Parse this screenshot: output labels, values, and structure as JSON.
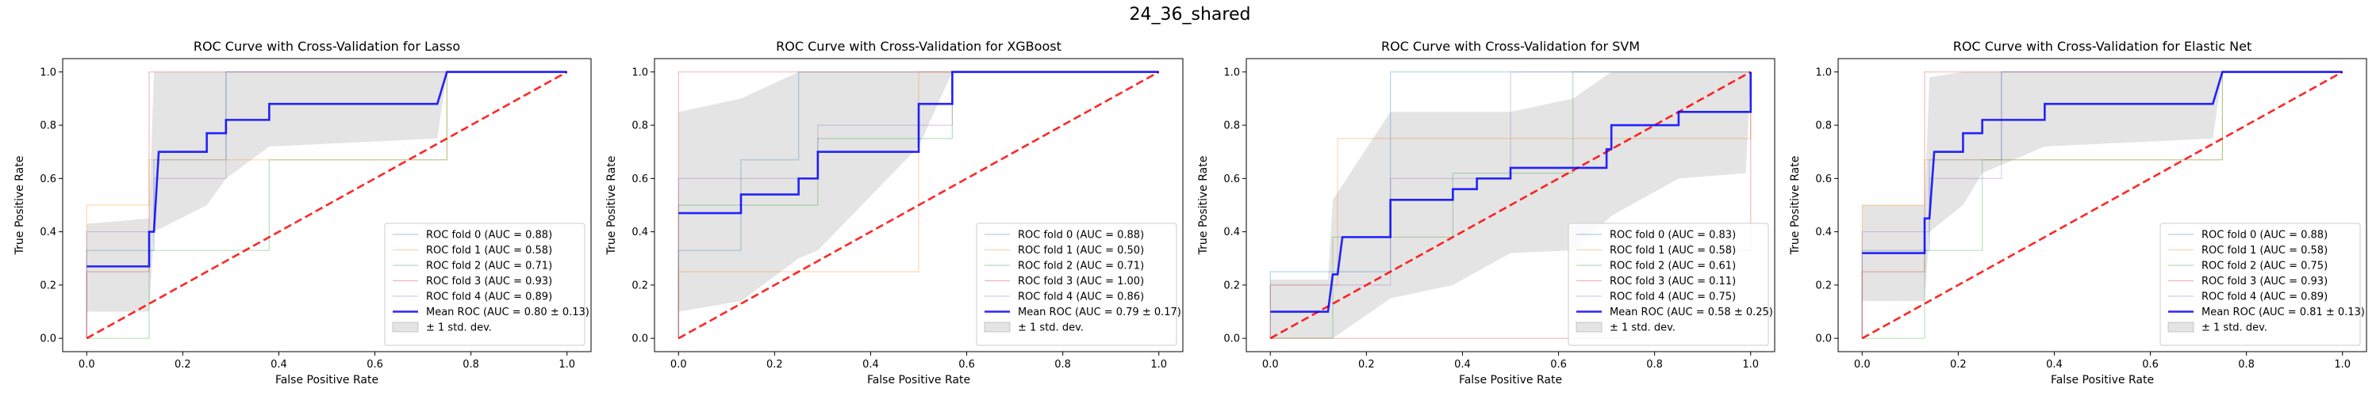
{
  "figure": {
    "suptitle": "24_36_shared"
  },
  "colors": {
    "fold": [
      "#1f77b4",
      "#ff7f0e",
      "#2ca02c",
      "#d62728",
      "#9467bd"
    ],
    "mean": "#0000ff",
    "chance": "#ff0000",
    "band": "#bfbfbf"
  },
  "chart_data": [
    {
      "type": "line",
      "title": "ROC Curve with Cross-Validation for Lasso",
      "xlabel": "False Positive Rate",
      "ylabel": "True Positive Rate",
      "xlim": [
        -0.05,
        1.05
      ],
      "ylim": [
        -0.05,
        1.05
      ],
      "xticks": [
        "0.0",
        "0.2",
        "0.4",
        "0.6",
        "0.8",
        "1.0"
      ],
      "yticks": [
        "0.0",
        "0.2",
        "0.4",
        "0.6",
        "0.8",
        "1.0"
      ],
      "grid": false,
      "legend": "lower-right",
      "folds": [
        {
          "name": "ROC fold 0 (AUC = 0.88)",
          "points": [
            [
              0,
              0
            ],
            [
              0,
              0.33
            ],
            [
              0.14,
              0.33
            ],
            [
              0.14,
              0.67
            ],
            [
              0.29,
              0.67
            ],
            [
              0.29,
              1
            ],
            [
              1,
              1
            ]
          ]
        },
        {
          "name": "ROC fold 1 (AUC = 0.58)",
          "points": [
            [
              0,
              0
            ],
            [
              0,
              0.5
            ],
            [
              0.13,
              0.5
            ],
            [
              0.13,
              0.67
            ],
            [
              0.38,
              0.67
            ],
            [
              0.38,
              0.67
            ],
            [
              0.75,
              0.67
            ],
            [
              0.75,
              1
            ],
            [
              1,
              1
            ]
          ]
        },
        {
          "name": "ROC fold 2 (AUC = 0.71)",
          "points": [
            [
              0,
              0
            ],
            [
              0.13,
              0
            ],
            [
              0.13,
              0.33
            ],
            [
              0.38,
              0.33
            ],
            [
              0.38,
              0.67
            ],
            [
              0.75,
              0.67
            ],
            [
              0.75,
              1
            ],
            [
              1,
              1
            ]
          ]
        },
        {
          "name": "ROC fold 3 (AUC = 0.93)",
          "points": [
            [
              0,
              0
            ],
            [
              0,
              0.25
            ],
            [
              0.13,
              0.25
            ],
            [
              0.13,
              1
            ],
            [
              1,
              1
            ]
          ]
        },
        {
          "name": "ROC fold 4 (AUC = 0.89)",
          "points": [
            [
              0,
              0
            ],
            [
              0,
              0.4
            ],
            [
              0.14,
              0.4
            ],
            [
              0.14,
              0.6
            ],
            [
              0.29,
              0.6
            ],
            [
              0.29,
              1
            ],
            [
              1,
              1
            ]
          ]
        }
      ],
      "mean": {
        "name": "Mean ROC (AUC = 0.80 ± 0.13)",
        "points": [
          [
            0,
            0.27
          ],
          [
            0.13,
            0.27
          ],
          [
            0.13,
            0.4
          ],
          [
            0.14,
            0.4
          ],
          [
            0.15,
            0.7
          ],
          [
            0.25,
            0.7
          ],
          [
            0.25,
            0.77
          ],
          [
            0.29,
            0.77
          ],
          [
            0.29,
            0.82
          ],
          [
            0.38,
            0.82
          ],
          [
            0.38,
            0.88
          ],
          [
            0.73,
            0.88
          ],
          [
            0.75,
            1
          ],
          [
            1,
            1
          ]
        ]
      },
      "band": {
        "name": "± 1 std. dev.",
        "x": [
          0,
          0.13,
          0.14,
          0.25,
          0.29,
          0.38,
          0.73,
          0.75,
          1
        ],
        "upper": [
          0.43,
          0.45,
          1,
          1,
          1,
          1,
          1,
          1,
          1
        ],
        "lower": [
          0.1,
          0.1,
          0.4,
          0.5,
          0.6,
          0.72,
          0.75,
          1,
          1
        ]
      }
    },
    {
      "type": "line",
      "title": "ROC Curve with Cross-Validation for XGBoost",
      "xlabel": "False Positive Rate",
      "ylabel": "True Positive Rate",
      "xlim": [
        -0.05,
        1.05
      ],
      "ylim": [
        -0.05,
        1.05
      ],
      "xticks": [
        "0.0",
        "0.2",
        "0.4",
        "0.6",
        "0.8",
        "1.0"
      ],
      "yticks": [
        "0.0",
        "0.2",
        "0.4",
        "0.6",
        "0.8",
        "1.0"
      ],
      "grid": false,
      "legend": "lower-right",
      "folds": [
        {
          "name": "ROC fold 0 (AUC = 0.88)",
          "points": [
            [
              0,
              0
            ],
            [
              0,
              0.33
            ],
            [
              0.13,
              0.33
            ],
            [
              0.13,
              0.67
            ],
            [
              0.25,
              0.67
            ],
            [
              0.25,
              1
            ],
            [
              1,
              1
            ]
          ]
        },
        {
          "name": "ROC fold 1 (AUC = 0.50)",
          "points": [
            [
              0,
              0
            ],
            [
              0,
              0.25
            ],
            [
              0.5,
              0.25
            ],
            [
              0.5,
              1
            ],
            [
              1,
              1
            ]
          ]
        },
        {
          "name": "ROC fold 2 (AUC = 0.71)",
          "points": [
            [
              0,
              0
            ],
            [
              0,
              0.5
            ],
            [
              0.29,
              0.5
            ],
            [
              0.29,
              0.75
            ],
            [
              0.57,
              0.75
            ],
            [
              0.57,
              1
            ],
            [
              1,
              1
            ]
          ]
        },
        {
          "name": "ROC fold 3 (AUC = 1.00)",
          "points": [
            [
              0,
              0
            ],
            [
              0,
              1
            ],
            [
              1,
              1
            ]
          ]
        },
        {
          "name": "ROC fold 4 (AUC = 0.86)",
          "points": [
            [
              0,
              0
            ],
            [
              0,
              0.6
            ],
            [
              0.29,
              0.6
            ],
            [
              0.29,
              0.8
            ],
            [
              0.57,
              0.8
            ],
            [
              0.57,
              1
            ],
            [
              1,
              1
            ]
          ]
        }
      ],
      "mean": {
        "name": "Mean ROC (AUC = 0.79 ± 0.17)",
        "points": [
          [
            0,
            0.47
          ],
          [
            0.13,
            0.47
          ],
          [
            0.13,
            0.54
          ],
          [
            0.25,
            0.54
          ],
          [
            0.25,
            0.6
          ],
          [
            0.29,
            0.6
          ],
          [
            0.29,
            0.7
          ],
          [
            0.5,
            0.7
          ],
          [
            0.5,
            0.88
          ],
          [
            0.57,
            0.88
          ],
          [
            0.57,
            1
          ],
          [
            1,
            1
          ]
        ]
      },
      "band": {
        "name": "± 1 std. dev.",
        "x": [
          0,
          0.13,
          0.25,
          0.29,
          0.5,
          0.57,
          1
        ],
        "upper": [
          0.85,
          0.9,
          1,
          1,
          1,
          1,
          1
        ],
        "lower": [
          0.1,
          0.14,
          0.3,
          0.33,
          0.72,
          1,
          1
        ]
      }
    },
    {
      "type": "line",
      "title": "ROC Curve with Cross-Validation for SVM",
      "xlabel": "False Positive Rate",
      "ylabel": "True Positive Rate",
      "xlim": [
        -0.05,
        1.05
      ],
      "ylim": [
        -0.05,
        1.05
      ],
      "xticks": [
        "0.0",
        "0.2",
        "0.4",
        "0.6",
        "0.8",
        "1.0"
      ],
      "yticks": [
        "0.0",
        "0.2",
        "0.4",
        "0.6",
        "0.8",
        "1.0"
      ],
      "grid": false,
      "legend": "lower-right",
      "folds": [
        {
          "name": "ROC fold 0 (AUC = 0.83)",
          "points": [
            [
              0,
              0
            ],
            [
              0,
              0.25
            ],
            [
              0.25,
              0.25
            ],
            [
              0.25,
              1
            ],
            [
              1,
              1
            ]
          ]
        },
        {
          "name": "ROC fold 1 (AUC = 0.58)",
          "points": [
            [
              0,
              0
            ],
            [
              0,
              0.2
            ],
            [
              0.14,
              0.2
            ],
            [
              0.14,
              0.75
            ],
            [
              0.43,
              0.75
            ],
            [
              0.43,
              0.75
            ],
            [
              1,
              0.75
            ],
            [
              1,
              1
            ]
          ]
        },
        {
          "name": "ROC fold 2 (AUC = 0.61)",
          "points": [
            [
              0,
              0
            ],
            [
              0.13,
              0
            ],
            [
              0.13,
              0.38
            ],
            [
              0.38,
              0.38
            ],
            [
              0.38,
              0.62
            ],
            [
              0.63,
              0.62
            ],
            [
              0.63,
              1
            ],
            [
              1,
              1
            ]
          ]
        },
        {
          "name": "ROC fold 3 (AUC = 0.11)",
          "points": [
            [
              0,
              0
            ],
            [
              0.75,
              0
            ],
            [
              0.75,
              0.33
            ],
            [
              1,
              0.33
            ],
            [
              1,
              1
            ]
          ]
        },
        {
          "name": "ROC fold 4 (AUC = 0.75)",
          "points": [
            [
              0,
              0
            ],
            [
              0,
              0.2
            ],
            [
              0.25,
              0.2
            ],
            [
              0.25,
              0.6
            ],
            [
              0.5,
              0.6
            ],
            [
              0.5,
              1
            ],
            [
              1,
              1
            ]
          ]
        }
      ],
      "mean": {
        "name": "Mean ROC (AUC = 0.58 ± 0.25)",
        "points": [
          [
            0,
            0.1
          ],
          [
            0.12,
            0.1
          ],
          [
            0.13,
            0.24
          ],
          [
            0.14,
            0.24
          ],
          [
            0.15,
            0.38
          ],
          [
            0.25,
            0.38
          ],
          [
            0.25,
            0.52
          ],
          [
            0.38,
            0.52
          ],
          [
            0.38,
            0.56
          ],
          [
            0.43,
            0.56
          ],
          [
            0.43,
            0.6
          ],
          [
            0.5,
            0.6
          ],
          [
            0.5,
            0.64
          ],
          [
            0.7,
            0.64
          ],
          [
            0.7,
            0.71
          ],
          [
            0.71,
            0.71
          ],
          [
            0.71,
            0.8
          ],
          [
            0.85,
            0.8
          ],
          [
            0.85,
            0.85
          ],
          [
            1,
            0.85
          ],
          [
            1,
            1
          ]
        ]
      },
      "band": {
        "name": "± 1 std. dev.",
        "x": [
          0,
          0.12,
          0.13,
          0.25,
          0.38,
          0.5,
          0.63,
          0.71,
          0.85,
          0.99,
          1
        ],
        "upper": [
          0.22,
          0.22,
          0.52,
          0.85,
          0.85,
          0.85,
          0.9,
          1,
          1,
          1,
          1
        ],
        "lower": [
          0,
          0,
          0,
          0.15,
          0.2,
          0.32,
          0.33,
          0.46,
          0.6,
          0.62,
          1
        ]
      }
    },
    {
      "type": "line",
      "title": "ROC Curve with Cross-Validation for Elastic Net",
      "xlabel": "False Positive Rate",
      "ylabel": "True Positive Rate",
      "xlim": [
        -0.05,
        1.05
      ],
      "ylim": [
        -0.05,
        1.05
      ],
      "xticks": [
        "0.0",
        "0.2",
        "0.4",
        "0.6",
        "0.8",
        "1.0"
      ],
      "yticks": [
        "0.0",
        "0.2",
        "0.4",
        "0.6",
        "0.8",
        "1.0"
      ],
      "grid": false,
      "legend": "lower-right",
      "folds": [
        {
          "name": "ROC fold 0 (AUC = 0.88)",
          "points": [
            [
              0,
              0
            ],
            [
              0,
              0.33
            ],
            [
              0.14,
              0.33
            ],
            [
              0.14,
              0.67
            ],
            [
              0.29,
              0.67
            ],
            [
              0.29,
              1
            ],
            [
              1,
              1
            ]
          ]
        },
        {
          "name": "ROC fold 1 (AUC = 0.58)",
          "points": [
            [
              0,
              0
            ],
            [
              0,
              0.5
            ],
            [
              0.13,
              0.5
            ],
            [
              0.13,
              0.67
            ],
            [
              0.75,
              0.67
            ],
            [
              0.75,
              1
            ],
            [
              1,
              1
            ]
          ]
        },
        {
          "name": "ROC fold 2 (AUC = 0.75)",
          "points": [
            [
              0,
              0
            ],
            [
              0.13,
              0
            ],
            [
              0.13,
              0.33
            ],
            [
              0.25,
              0.33
            ],
            [
              0.25,
              0.67
            ],
            [
              0.75,
              0.67
            ],
            [
              0.75,
              1
            ],
            [
              1,
              1
            ]
          ]
        },
        {
          "name": "ROC fold 3 (AUC = 0.93)",
          "points": [
            [
              0,
              0
            ],
            [
              0,
              0.25
            ],
            [
              0.13,
              0.25
            ],
            [
              0.13,
              1
            ],
            [
              1,
              1
            ]
          ]
        },
        {
          "name": "ROC fold 4 (AUC = 0.89)",
          "points": [
            [
              0,
              0
            ],
            [
              0,
              0.4
            ],
            [
              0.14,
              0.4
            ],
            [
              0.14,
              0.6
            ],
            [
              0.29,
              0.6
            ],
            [
              0.29,
              1
            ],
            [
              1,
              1
            ]
          ]
        }
      ],
      "mean": {
        "name": "Mean ROC (AUC = 0.81 ± 0.13)",
        "points": [
          [
            0,
            0.32
          ],
          [
            0.13,
            0.32
          ],
          [
            0.13,
            0.45
          ],
          [
            0.14,
            0.45
          ],
          [
            0.15,
            0.7
          ],
          [
            0.21,
            0.7
          ],
          [
            0.21,
            0.77
          ],
          [
            0.25,
            0.77
          ],
          [
            0.25,
            0.82
          ],
          [
            0.38,
            0.82
          ],
          [
            0.38,
            0.88
          ],
          [
            0.73,
            0.88
          ],
          [
            0.75,
            1
          ],
          [
            1,
            1
          ]
        ]
      },
      "band": {
        "name": "± 1 std. dev.",
        "x": [
          0,
          0.13,
          0.14,
          0.21,
          0.25,
          0.38,
          0.73,
          0.75,
          1
        ],
        "upper": [
          0.5,
          0.5,
          0.98,
          1,
          1,
          1,
          1,
          1,
          1
        ],
        "lower": [
          0.14,
          0.14,
          0.4,
          0.5,
          0.62,
          0.72,
          0.75,
          1,
          1
        ]
      }
    }
  ]
}
